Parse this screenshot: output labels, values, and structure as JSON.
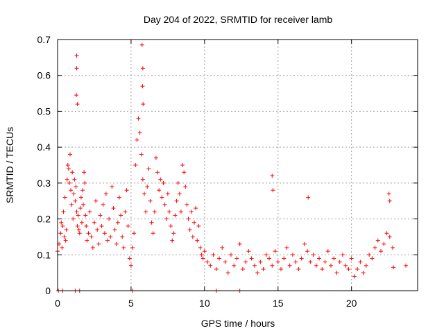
{
  "chart_data": {
    "type": "scatter",
    "title": "Day 204 of 2022, SRMTID for receiver lamb",
    "xlabel": "GPS time / hours",
    "ylabel": "SRMTID / TECUs",
    "xlim": [
      0,
      24.5
    ],
    "ylim": [
      0,
      0.7
    ],
    "xticks": [
      0,
      5,
      10,
      15,
      20
    ],
    "yticks": [
      0,
      0.1,
      0.2,
      0.3,
      0.4,
      0.5,
      0.6,
      0.7
    ],
    "xtick_labels": [
      "0",
      "5",
      "10",
      "15",
      "20"
    ],
    "ytick_labels": [
      "0",
      "0.1",
      "0.2",
      "0.3",
      "0.4",
      "0.5",
      "0.6",
      "0.7"
    ],
    "grid": true,
    "marker": "+",
    "color": "#ff0000",
    "series": [
      {
        "name": "SRMTID",
        "x": [
          0.0,
          0.1,
          0.2,
          0.25,
          0.3,
          0.35,
          0.4,
          0.45,
          0.5,
          0.55,
          0.6,
          0.65,
          0.7,
          0.75,
          0.8,
          0.85,
          0.9,
          0.95,
          1.0,
          1.05,
          1.1,
          1.15,
          1.2,
          1.25,
          1.3,
          1.35,
          1.4,
          1.45,
          1.5,
          1.55,
          1.6,
          1.65,
          1.7,
          1.75,
          1.8,
          1.85,
          1.9,
          1.95,
          2.0,
          2.1,
          2.2,
          2.3,
          2.4,
          2.5,
          2.6,
          2.7,
          2.8,
          2.9,
          3.0,
          3.1,
          3.2,
          3.3,
          3.4,
          3.5,
          3.6,
          3.7,
          3.8,
          3.9,
          4.0,
          4.1,
          4.2,
          4.3,
          4.4,
          4.5,
          4.6,
          4.7,
          4.8,
          4.9,
          5.0,
          5.1,
          5.2,
          5.3,
          5.4,
          5.5,
          5.6,
          5.7,
          5.8,
          5.9,
          6.0,
          6.1,
          6.2,
          6.3,
          6.4,
          6.5,
          6.6,
          6.7,
          6.8,
          6.9,
          7.0,
          7.1,
          7.2,
          7.3,
          7.4,
          7.5,
          7.6,
          7.7,
          7.8,
          7.9,
          8.0,
          8.1,
          8.2,
          8.3,
          8.4,
          8.5,
          8.6,
          8.7,
          8.8,
          8.9,
          9.0,
          9.1,
          9.2,
          9.3,
          9.4,
          9.5,
          9.6,
          9.7,
          9.8,
          9.9,
          10.0,
          10.2,
          10.4,
          10.6,
          10.8,
          11.0,
          11.2,
          11.4,
          11.6,
          11.8,
          12.0,
          12.2,
          12.4,
          12.6,
          12.8,
          13.0,
          13.2,
          13.4,
          13.6,
          13.8,
          14.0,
          14.2,
          14.4,
          14.6,
          14.8,
          15.0,
          15.2,
          15.4,
          15.6,
          15.8,
          16.0,
          16.2,
          16.4,
          16.6,
          16.8,
          17.0,
          17.2,
          17.4,
          17.6,
          17.8,
          18.0,
          18.2,
          18.4,
          18.6,
          18.8,
          19.0,
          19.2,
          19.4,
          19.6,
          19.8,
          20.0,
          20.2,
          20.4,
          20.6,
          20.8,
          21.0,
          21.2,
          21.4,
          21.6,
          21.8,
          22.0,
          22.2,
          22.4,
          22.6,
          22.8,
          1.3,
          1.3,
          1.28,
          1.35,
          5.75,
          5.8,
          5.78,
          5.82,
          14.6,
          14.65,
          17.05,
          22.55,
          22.6,
          23.7,
          0.05,
          0.35,
          1.2,
          1.5,
          5.1,
          10.8,
          12.4,
          22.85
        ],
        "y": [
          0.11,
          0.13,
          0.16,
          0.19,
          0.12,
          0.18,
          0.22,
          0.15,
          0.26,
          0.14,
          0.17,
          0.31,
          0.35,
          0.34,
          0.3,
          0.38,
          0.28,
          0.24,
          0.33,
          0.2,
          0.27,
          0.31,
          0.25,
          0.29,
          0.22,
          0.18,
          0.21,
          0.17,
          0.16,
          0.23,
          0.26,
          0.19,
          0.28,
          0.24,
          0.33,
          0.3,
          0.21,
          0.18,
          0.14,
          0.16,
          0.22,
          0.15,
          0.12,
          0.19,
          0.25,
          0.17,
          0.13,
          0.21,
          0.18,
          0.24,
          0.16,
          0.27,
          0.14,
          0.2,
          0.15,
          0.29,
          0.23,
          0.17,
          0.13,
          0.19,
          0.26,
          0.21,
          0.15,
          0.12,
          0.22,
          0.28,
          0.18,
          0.09,
          0.07,
          0.12,
          0.16,
          0.35,
          0.42,
          0.48,
          0.44,
          0.38,
          0.31,
          0.27,
          0.22,
          0.29,
          0.34,
          0.25,
          0.19,
          0.16,
          0.22,
          0.37,
          0.33,
          0.28,
          0.31,
          0.26,
          0.3,
          0.24,
          0.2,
          0.27,
          0.22,
          0.18,
          0.14,
          0.16,
          0.21,
          0.25,
          0.3,
          0.27,
          0.22,
          0.35,
          0.33,
          0.29,
          0.24,
          0.2,
          0.17,
          0.22,
          0.15,
          0.19,
          0.23,
          0.14,
          0.18,
          0.12,
          0.1,
          0.09,
          0.11,
          0.08,
          0.07,
          0.1,
          0.06,
          0.09,
          0.12,
          0.08,
          0.05,
          0.1,
          0.07,
          0.09,
          0.13,
          0.06,
          0.08,
          0.11,
          0.09,
          0.07,
          0.05,
          0.08,
          0.06,
          0.1,
          0.09,
          0.07,
          0.11,
          0.08,
          0.06,
          0.09,
          0.12,
          0.07,
          0.1,
          0.08,
          0.06,
          0.09,
          0.13,
          0.11,
          0.08,
          0.1,
          0.07,
          0.09,
          0.06,
          0.08,
          0.11,
          0.07,
          0.09,
          0.05,
          0.08,
          0.1,
          0.07,
          0.06,
          0.09,
          0.04,
          0.06,
          0.08,
          0.05,
          0.07,
          0.1,
          0.09,
          0.12,
          0.14,
          0.11,
          0.13,
          0.16,
          0.15,
          0.12,
          0.655,
          0.62,
          0.545,
          0.52,
          0.685,
          0.62,
          0.57,
          0.52,
          0.32,
          0.28,
          0.26,
          0.27,
          0.25,
          0.07,
          0.0,
          0.0,
          0.0,
          0.0,
          0.0,
          0.0,
          0.0,
          0.065
        ]
      }
    ]
  }
}
